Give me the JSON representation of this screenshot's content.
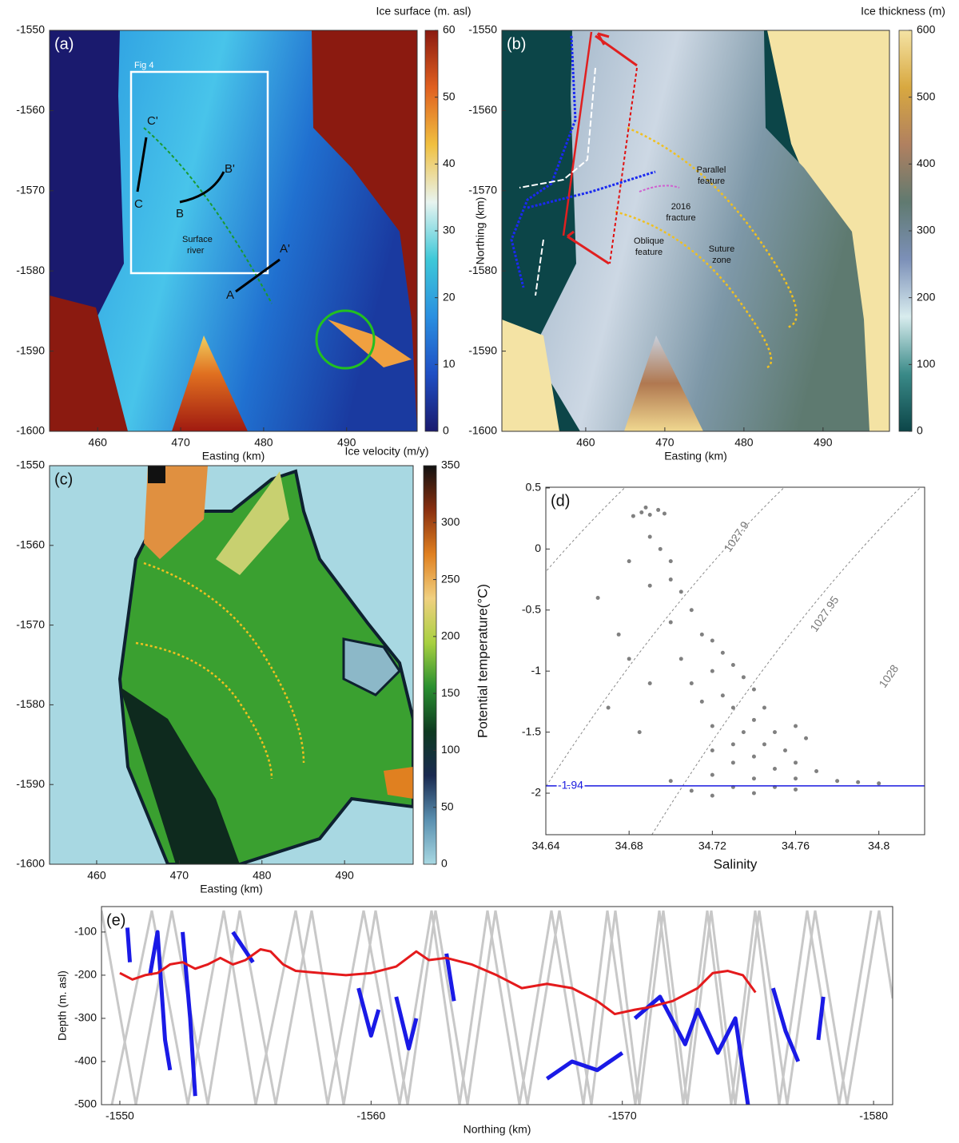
{
  "chart_data": [
    {
      "type": "map",
      "panel_label": "(a)",
      "xlabel": "Easting (km)",
      "xlim": [
        454.2,
        498.5
      ],
      "xticks": [
        460,
        470,
        480,
        490
      ],
      "ylim": [
        -1600,
        -1550
      ],
      "yticks": [
        -1600,
        -1590,
        -1580,
        -1570,
        -1560,
        -1550
      ],
      "colorbar": {
        "label": "Ice surface (m. asl)",
        "lim": [
          0,
          60
        ],
        "ticks": [
          0,
          10,
          20,
          30,
          40,
          50,
          60
        ],
        "colors": [
          "#1a1a6e",
          "#1f4fc4",
          "#2a8fe0",
          "#3ec8d8",
          "#e8f4f0",
          "#f0c040",
          "#e06020",
          "#8b1a10"
        ]
      },
      "annotations": [
        "Fig 4",
        "C'",
        "C",
        "B'",
        "B",
        "A'",
        "A",
        "Surface",
        "river"
      ]
    },
    {
      "type": "map",
      "panel_label": "(b)",
      "xlabel": "Easting (km)",
      "ylabel": "Northing (km)",
      "xlim": [
        449.4,
        498.4
      ],
      "xticks": [
        460,
        470,
        480,
        490
      ],
      "ylim": [
        -1600,
        -1550
      ],
      "yticks": [
        -1600,
        -1590,
        -1580,
        -1570,
        -1560,
        -1550
      ],
      "colorbar": {
        "label": "Ice thickness (m)",
        "lim": [
          0,
          600
        ],
        "ticks": [
          0,
          100,
          200,
          300,
          400,
          500,
          600
        ],
        "colors": [
          "#0c4548",
          "#3a8a88",
          "#d8ecee",
          "#7c90b8",
          "#607a70",
          "#b08060",
          "#d8a840",
          "#f4e3a4"
        ]
      },
      "annotations": [
        "Parallel",
        "feature",
        "2016",
        "fracture",
        "Oblique",
        "feature",
        "Suture",
        "zone"
      ]
    },
    {
      "type": "map",
      "panel_label": "(c)",
      "xlabel": "Easting (km)",
      "xlim": [
        454.3,
        498.3
      ],
      "xticks": [
        460,
        470,
        480,
        490
      ],
      "ylim": [
        -1600,
        -1550
      ],
      "yticks": [
        -1600,
        -1590,
        -1580,
        -1570,
        -1560,
        -1550
      ],
      "colorbar": {
        "label": "Ice velocity (m/y)",
        "lim": [
          0,
          350
        ],
        "ticks": [
          0,
          50,
          100,
          150,
          200,
          250,
          300,
          350
        ],
        "colors": [
          "#a8d8e2",
          "#5a90b0",
          "#1a2a50",
          "#0e3a20",
          "#2a9030",
          "#a8d040",
          "#f0d080",
          "#e08020",
          "#8a3010",
          "#111111"
        ]
      }
    },
    {
      "type": "scatter",
      "panel_label": "(d)",
      "xlabel": "Salinity",
      "ylabel": "Potential temperature(°C)",
      "xlim": [
        34.64,
        34.822
      ],
      "xticks": [
        34.64,
        34.68,
        34.72,
        34.76,
        34.8
      ],
      "ylim": [
        -2.34,
        0.506
      ],
      "yticks": [
        -2,
        -1.5,
        -1,
        -0.5,
        0,
        0.5
      ],
      "color": "#808080",
      "x": [
        34.686,
        34.69,
        34.694,
        34.682,
        34.697,
        34.688,
        34.69,
        34.695,
        34.7,
        34.69,
        34.705,
        34.71,
        34.7,
        34.715,
        34.72,
        34.675,
        34.68,
        34.705,
        34.725,
        34.73,
        34.72,
        34.71,
        34.735,
        34.74,
        34.725,
        34.715,
        34.73,
        34.745,
        34.74,
        34.72,
        34.735,
        34.75,
        34.73,
        34.745,
        34.755,
        34.72,
        34.74,
        34.76,
        34.73,
        34.75,
        34.77,
        34.72,
        34.74,
        34.76,
        34.78,
        34.7,
        34.73,
        34.75,
        34.79,
        34.8,
        34.71,
        34.74,
        34.72,
        34.76,
        34.665,
        34.67,
        34.685,
        34.69,
        34.7,
        34.68,
        34.76,
        34.765
      ],
      "values": [
        0.3,
        0.28,
        0.32,
        0.27,
        0.29,
        0.34,
        0.1,
        0,
        -0.1,
        -0.3,
        -0.35,
        -0.5,
        -0.6,
        -0.7,
        -0.75,
        -0.7,
        -0.9,
        -0.9,
        -0.85,
        -0.95,
        -1,
        -1.1,
        -1.05,
        -1.15,
        -1.2,
        -1.25,
        -1.3,
        -1.3,
        -1.4,
        -1.45,
        -1.5,
        -1.5,
        -1.6,
        -1.6,
        -1.65,
        -1.65,
        -1.7,
        -1.75,
        -1.75,
        -1.8,
        -1.82,
        -1.85,
        -1.88,
        -1.88,
        -1.9,
        -1.9,
        -1.95,
        -1.95,
        -1.91,
        -1.92,
        -1.98,
        -2,
        -2.02,
        -1.97,
        -0.4,
        -1.3,
        -1.5,
        -1.1,
        -0.25,
        -0.1,
        -1.45,
        -1.55
      ],
      "contours": [
        1027.9,
        1027.95,
        1028
      ],
      "hline": -1.94,
      "hline_color": "#1a1adf"
    },
    {
      "type": "line",
      "panel_label": "(e)",
      "xlabel": "Northing (km)",
      "ylabel": "Depth (m. asl)",
      "xlim": [
        -1549.27,
        -1580.76
      ],
      "xticks": [
        -1550,
        -1560,
        -1570,
        -1580
      ],
      "ylim": [
        -500,
        -41
      ],
      "yticks": [
        -500,
        -400,
        -300,
        -200,
        -100
      ],
      "series": [
        {
          "color": "#1a1ae6",
          "x": [
            -1550.3,
            -1550.4,
            null,
            -1551.2,
            -1551.5,
            -1551.8,
            -1552,
            null,
            -1552.5,
            -1552.8,
            -1553,
            null,
            -1554.5,
            -1555.3,
            null,
            -1559.5,
            -1560,
            -1560.3,
            null,
            -1561,
            -1561.5,
            -1561.8,
            null,
            -1563,
            -1563.3,
            null,
            -1567,
            -1568,
            -1569,
            -1570,
            null,
            -1570.5,
            -1571.5,
            -1572.5,
            -1573,
            -1573.8,
            -1574.5,
            -1575,
            null,
            -1576,
            -1576.5,
            -1577,
            null,
            -1577.8,
            -1578
          ],
          "values": [
            -90,
            -170,
            null,
            -200,
            -100,
            -350,
            -420,
            null,
            -100,
            -300,
            -480,
            null,
            -100,
            -170,
            null,
            -230,
            -340,
            -280,
            null,
            -250,
            -370,
            -300,
            null,
            -150,
            -260,
            null,
            -440,
            -400,
            -420,
            -380,
            null,
            -300,
            -250,
            -360,
            -280,
            -380,
            -300,
            -500,
            null,
            -230,
            -330,
            -400,
            null,
            -350,
            -250
          ]
        },
        {
          "color": "#e41a1c",
          "x": [
            -1550,
            -1550.5,
            -1551,
            -1551.5,
            -1552,
            -1552.5,
            -1553,
            -1553.5,
            -1554,
            -1554.5,
            -1555,
            -1555.6,
            -1556,
            -1556.5,
            -1557,
            -1558,
            -1559,
            -1560,
            -1561,
            -1561.8,
            -1562.3,
            -1563,
            -1564,
            -1565,
            -1566,
            -1567,
            -1568,
            -1569,
            -1569.7,
            -1570.5,
            -1571,
            -1572,
            -1573,
            -1573.6,
            -1574.2,
            -1574.8,
            -1575.3
          ],
          "values": [
            -195,
            -210,
            -200,
            -195,
            -175,
            -170,
            -185,
            -175,
            -160,
            -175,
            -165,
            -140,
            -145,
            -175,
            -190,
            -195,
            -200,
            -195,
            -180,
            -145,
            -165,
            -160,
            -175,
            -200,
            -230,
            -220,
            -230,
            -260,
            -290,
            -280,
            -275,
            -260,
            -230,
            -195,
            -190,
            -200,
            -240
          ]
        }
      ]
    }
  ]
}
